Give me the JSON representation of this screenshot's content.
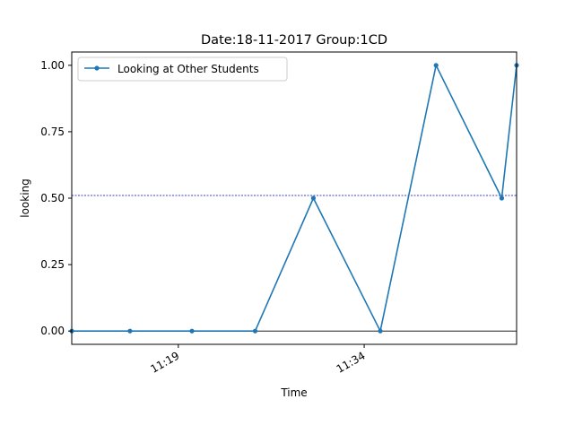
{
  "chart_data": {
    "type": "line",
    "title": "Date:18-11-2017  Group:1CD",
    "xlabel": "Time",
    "ylabel": "looking",
    "x_tick_labels": [
      "11:19",
      "11:34"
    ],
    "x_tick_minutes": [
      19,
      34
    ],
    "y_ticks": [
      0.0,
      0.25,
      0.5,
      0.75,
      1.0
    ],
    "y_tick_labels": [
      "0.00",
      "0.25",
      "0.50",
      "0.75",
      "1.00"
    ],
    "xlim": [
      10.4,
      46.3
    ],
    "ylim": [
      -0.05,
      1.05
    ],
    "grid": false,
    "legend_position": "upper left",
    "series": [
      {
        "name": "Looking at Other Students",
        "color": "#1f77b4",
        "marker": "dot",
        "x": [
          10.4,
          15.1,
          20.1,
          25.2,
          29.9,
          35.3,
          39.8,
          45.1,
          46.3
        ],
        "y": [
          0.0,
          0.0,
          0.0,
          0.0,
          0.5,
          0.0,
          1.0,
          0.5,
          1.0
        ]
      }
    ],
    "reference_lines": [
      {
        "axis": "y",
        "value": 0.51,
        "color": "#0000cc",
        "style": "dashed"
      },
      {
        "axis": "y",
        "value": 0.0,
        "color": "#000000",
        "style": "solid"
      }
    ]
  }
}
